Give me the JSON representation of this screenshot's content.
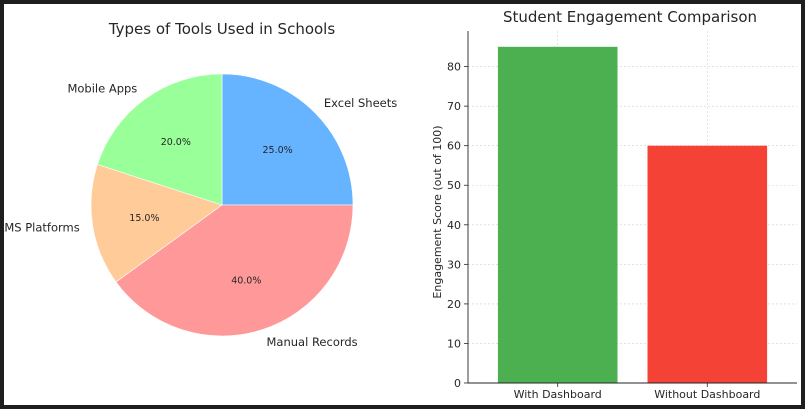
{
  "chart_data": [
    {
      "type": "pie",
      "title": "Types of Tools Used in Schools",
      "categories": [
        "Excel Sheets",
        "Mobile Apps",
        "LMS Platforms",
        "Manual Records"
      ],
      "values": [
        25.0,
        20.0,
        15.0,
        40.0
      ],
      "percent_labels": [
        "25.0%",
        "20.0%",
        "15.0%",
        "40.0%"
      ],
      "colors": [
        "#66b3ff",
        "#99ff99",
        "#ffcc99",
        "#ff9999"
      ],
      "start_angle_deg": 0,
      "direction": "counterclockwise"
    },
    {
      "type": "bar",
      "title": "Student Engagement Comparison",
      "categories": [
        "With Dashboard",
        "Without Dashboard"
      ],
      "values": [
        85,
        60
      ],
      "colors": [
        "#4caf50",
        "#f44336"
      ],
      "xlabel": "",
      "ylabel": "Engagement Score (out of 100)",
      "ylim": [
        0,
        89
      ],
      "yticks": [
        0,
        10,
        20,
        30,
        40,
        50,
        60,
        70,
        80
      ],
      "grid": true
    }
  ]
}
